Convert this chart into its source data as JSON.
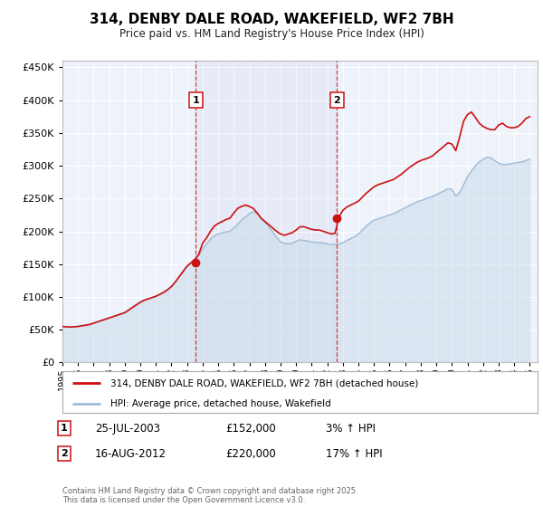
{
  "title": "314, DENBY DALE ROAD, WAKEFIELD, WF2 7BH",
  "subtitle": "Price paid vs. HM Land Registry's House Price Index (HPI)",
  "background_color": "#ffffff",
  "plot_bg_color": "#eef2fa",
  "grid_color": "#ffffff",
  "hpi_color": "#a0bcd8",
  "hpi_fill_color": "#c8daea",
  "price_color": "#cc1111",
  "ylim": [
    0,
    460000
  ],
  "yticks": [
    0,
    50000,
    100000,
    150000,
    200000,
    250000,
    300000,
    350000,
    400000,
    450000
  ],
  "xlim_start": 1995.0,
  "xlim_end": 2025.5,
  "sale1_x": 2003.56,
  "sale1_y": 152000,
  "sale1_label": "1",
  "sale1_date": "25-JUL-2003",
  "sale1_price": "£152,000",
  "sale1_hpi": "3% ↑ HPI",
  "sale2_x": 2012.62,
  "sale2_y": 220000,
  "sale2_label": "2",
  "sale2_date": "16-AUG-2012",
  "sale2_price": "£220,000",
  "sale2_hpi": "17% ↑ HPI",
  "legend_label_price": "314, DENBY DALE ROAD, WAKEFIELD, WF2 7BH (detached house)",
  "legend_label_hpi": "HPI: Average price, detached house, Wakefield",
  "footer_text": "Contains HM Land Registry data © Crown copyright and database right 2025.\nThis data is licensed under the Open Government Licence v3.0.",
  "hpi_data_x": [
    1995.0,
    1995.25,
    1995.5,
    1995.75,
    1996.0,
    1996.25,
    1996.5,
    1996.75,
    1997.0,
    1997.25,
    1997.5,
    1997.75,
    1998.0,
    1998.25,
    1998.5,
    1998.75,
    1999.0,
    1999.25,
    1999.5,
    1999.75,
    2000.0,
    2000.25,
    2000.5,
    2000.75,
    2001.0,
    2001.25,
    2001.5,
    2001.75,
    2002.0,
    2002.25,
    2002.5,
    2002.75,
    2003.0,
    2003.25,
    2003.5,
    2003.75,
    2004.0,
    2004.25,
    2004.5,
    2004.75,
    2005.0,
    2005.25,
    2005.5,
    2005.75,
    2006.0,
    2006.25,
    2006.5,
    2006.75,
    2007.0,
    2007.25,
    2007.5,
    2007.75,
    2008.0,
    2008.25,
    2008.5,
    2008.75,
    2009.0,
    2009.25,
    2009.5,
    2009.75,
    2010.0,
    2010.25,
    2010.5,
    2010.75,
    2011.0,
    2011.25,
    2011.5,
    2011.75,
    2012.0,
    2012.25,
    2012.5,
    2012.75,
    2013.0,
    2013.25,
    2013.5,
    2013.75,
    2014.0,
    2014.25,
    2014.5,
    2014.75,
    2015.0,
    2015.25,
    2015.5,
    2015.75,
    2016.0,
    2016.25,
    2016.5,
    2016.75,
    2017.0,
    2017.25,
    2017.5,
    2017.75,
    2018.0,
    2018.25,
    2018.5,
    2018.75,
    2019.0,
    2019.25,
    2019.5,
    2019.75,
    2020.0,
    2020.25,
    2020.5,
    2020.75,
    2021.0,
    2021.25,
    2021.5,
    2021.75,
    2022.0,
    2022.25,
    2022.5,
    2022.75,
    2023.0,
    2023.25,
    2023.5,
    2023.75,
    2024.0,
    2024.25,
    2024.5,
    2024.75,
    2025.0
  ],
  "hpi_data_y": [
    55000,
    54500,
    54000,
    54500,
    55000,
    56000,
    57000,
    58000,
    60000,
    62000,
    64000,
    66000,
    68000,
    70000,
    72000,
    74000,
    76000,
    80000,
    84000,
    88000,
    92000,
    95000,
    97000,
    99000,
    101000,
    104000,
    107000,
    111000,
    116000,
    123000,
    131000,
    139000,
    147000,
    152000,
    157000,
    163000,
    173000,
    181000,
    188000,
    193000,
    196000,
    198000,
    199000,
    200000,
    205000,
    211000,
    217000,
    222000,
    227000,
    230000,
    228000,
    221000,
    214000,
    207000,
    199000,
    191000,
    184000,
    182000,
    181000,
    182000,
    185000,
    187000,
    186000,
    185000,
    184000,
    183000,
    183000,
    182000,
    181000,
    180000,
    180000,
    181000,
    183000,
    186000,
    189000,
    192000,
    196000,
    202000,
    208000,
    213000,
    217000,
    219000,
    221000,
    223000,
    225000,
    227000,
    230000,
    233000,
    236000,
    239000,
    242000,
    245000,
    247000,
    249000,
    251000,
    253000,
    256000,
    259000,
    262000,
    265000,
    264000,
    254000,
    259000,
    271000,
    283000,
    292000,
    300000,
    306000,
    310000,
    313000,
    312000,
    308000,
    304000,
    302000,
    302000,
    303000,
    304000,
    305000,
    306000,
    308000,
    310000
  ],
  "price_data_x": [
    1995.0,
    1995.25,
    1995.5,
    1995.75,
    1996.0,
    1996.25,
    1996.5,
    1996.75,
    1997.0,
    1997.25,
    1997.5,
    1997.75,
    1998.0,
    1998.25,
    1998.5,
    1998.75,
    1999.0,
    1999.25,
    1999.5,
    1999.75,
    2000.0,
    2000.25,
    2000.5,
    2000.75,
    2001.0,
    2001.25,
    2001.5,
    2001.75,
    2002.0,
    2002.25,
    2002.5,
    2002.75,
    2003.0,
    2003.25,
    2003.5,
    2003.75,
    2004.0,
    2004.25,
    2004.5,
    2004.75,
    2005.0,
    2005.25,
    2005.5,
    2005.75,
    2006.0,
    2006.25,
    2006.5,
    2006.75,
    2007.0,
    2007.25,
    2007.5,
    2007.75,
    2008.0,
    2008.25,
    2008.5,
    2008.75,
    2009.0,
    2009.25,
    2009.5,
    2009.75,
    2010.0,
    2010.25,
    2010.5,
    2010.75,
    2011.0,
    2011.25,
    2011.5,
    2011.75,
    2012.0,
    2012.25,
    2012.5,
    2012.75,
    2013.0,
    2013.25,
    2013.5,
    2013.75,
    2014.0,
    2014.25,
    2014.5,
    2014.75,
    2015.0,
    2015.25,
    2015.5,
    2015.75,
    2016.0,
    2016.25,
    2016.5,
    2016.75,
    2017.0,
    2017.25,
    2017.5,
    2017.75,
    2018.0,
    2018.25,
    2018.5,
    2018.75,
    2019.0,
    2019.25,
    2019.5,
    2019.75,
    2020.0,
    2020.25,
    2020.5,
    2020.75,
    2021.0,
    2021.25,
    2021.5,
    2021.75,
    2022.0,
    2022.25,
    2022.5,
    2022.75,
    2023.0,
    2023.25,
    2023.5,
    2023.75,
    2024.0,
    2024.25,
    2024.5,
    2024.75,
    2025.0
  ],
  "price_data_y": [
    55000,
    54500,
    54000,
    54500,
    55000,
    56000,
    57000,
    58000,
    60000,
    62000,
    64000,
    66000,
    68000,
    70000,
    72000,
    74000,
    76000,
    80000,
    84000,
    88000,
    92000,
    95000,
    97000,
    99000,
    101000,
    104000,
    107000,
    111000,
    116000,
    123000,
    131000,
    139000,
    147000,
    152000,
    157000,
    165000,
    182000,
    190000,
    200000,
    208000,
    212000,
    215000,
    218000,
    220000,
    228000,
    235000,
    238000,
    240000,
    238000,
    235000,
    228000,
    220000,
    215000,
    210000,
    205000,
    200000,
    196000,
    194000,
    196000,
    198000,
    202000,
    207000,
    207000,
    205000,
    203000,
    202000,
    202000,
    200000,
    198000,
    196000,
    197000,
    222000,
    232000,
    237000,
    240000,
    243000,
    246000,
    252000,
    258000,
    263000,
    268000,
    271000,
    273000,
    275000,
    277000,
    279000,
    283000,
    287000,
    292000,
    297000,
    301000,
    305000,
    308000,
    310000,
    312000,
    315000,
    320000,
    325000,
    330000,
    335000,
    333000,
    323000,
    344000,
    368000,
    378000,
    382000,
    374000,
    365000,
    360000,
    357000,
    355000,
    355000,
    362000,
    365000,
    360000,
    358000,
    358000,
    360000,
    365000,
    372000,
    375000
  ]
}
